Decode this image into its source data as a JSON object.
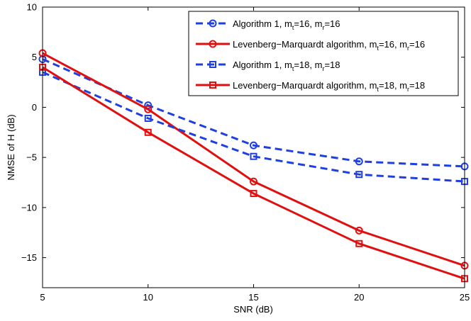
{
  "chart_data": {
    "type": "line",
    "title": "",
    "xlabel": "SNR (dB)",
    "ylabel": "NMSE of H (dB)",
    "xlim": [
      5,
      25
    ],
    "ylim": [
      -18,
      10
    ],
    "xticks": [
      5,
      10,
      15,
      20,
      25
    ],
    "yticks": [
      10,
      5,
      0,
      -5,
      -10,
      -15
    ],
    "x": [
      5,
      10,
      15,
      20,
      25
    ],
    "legend_position": "top-right",
    "grid": false,
    "series": [
      {
        "name": "Algorithm 1, m_t=16, m_r=16",
        "legend": {
          "base": "Algorithm 1, m",
          "sub1": "t",
          "mid": "=16, m",
          "sub2": "r",
          "end": "=16"
        },
        "values": [
          4.8,
          0.2,
          -3.8,
          -5.4,
          -5.9
        ],
        "color": "#1f3fe0",
        "dashed": true,
        "marker": "circle"
      },
      {
        "name": "Levenberg-Marquardt algorithm, m_t=16, m_r=16",
        "legend": {
          "base": "Levenberg−Marquardt algorithm, m",
          "sub1": "t",
          "mid": "=16, m",
          "sub2": "r",
          "end": "=16"
        },
        "values": [
          5.4,
          -0.2,
          -7.4,
          -12.3,
          -15.8
        ],
        "color": "#e01010",
        "dashed": false,
        "marker": "circle"
      },
      {
        "name": "Algorithm 1, m_t=18, m_r=18",
        "legend": {
          "base": "Algorithm 1, m",
          "sub1": "t",
          "mid": "=18, m",
          "sub2": "r",
          "end": "=18"
        },
        "values": [
          3.5,
          -1.1,
          -4.9,
          -6.7,
          -7.4
        ],
        "color": "#1f3fe0",
        "dashed": true,
        "marker": "square"
      },
      {
        "name": "Levenberg-Marquardt algorithm, m_t=18, m_r=18",
        "legend": {
          "base": "Levenberg−Marquardt algorithm, m",
          "sub1": "t",
          "mid": "=18, m",
          "sub2": "r",
          "end": "=18"
        },
        "values": [
          4.0,
          -2.5,
          -8.6,
          -13.6,
          -17.1
        ],
        "color": "#e01010",
        "dashed": false,
        "marker": "square"
      }
    ]
  }
}
